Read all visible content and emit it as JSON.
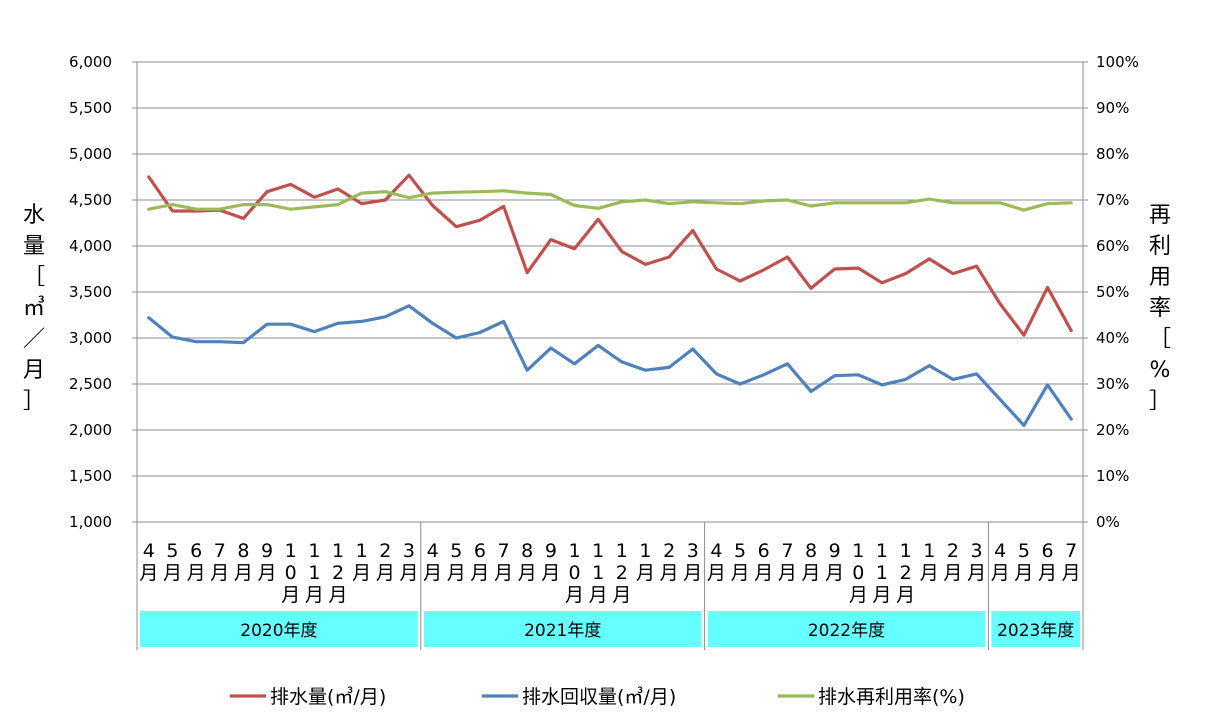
{
  "chart_data": {
    "type": "line",
    "y_left_label": "水量［㎥／月］",
    "y_right_label": "再利用率［%］",
    "ylim_left": [
      1000,
      6000
    ],
    "ylim_right": [
      0,
      100
    ],
    "y_left_ticks": [
      "1,000",
      "1,500",
      "2,000",
      "2,500",
      "3,000",
      "3,500",
      "4,000",
      "4,500",
      "5,000",
      "5,500",
      "6,000"
    ],
    "y_right_ticks": [
      "0%",
      "10%",
      "20%",
      "30%",
      "40%",
      "50%",
      "60%",
      "70%",
      "80%",
      "90%",
      "100%"
    ],
    "categories": [
      "4月",
      "5月",
      "6月",
      "7月",
      "8月",
      "9月",
      "10月",
      "11月",
      "12月",
      "1月",
      "2月",
      "3月",
      "4月",
      "5月",
      "6月",
      "7月",
      "8月",
      "9月",
      "10月",
      "11月",
      "12月",
      "1月",
      "2月",
      "3月",
      "4月",
      "5月",
      "6月",
      "7月",
      "8月",
      "9月",
      "10月",
      "11月",
      "12月",
      "1月",
      "2月",
      "3月",
      "4月",
      "5月",
      "6月",
      "7月"
    ],
    "groups": [
      {
        "label": "2020年度",
        "count": 12
      },
      {
        "label": "2021年度",
        "count": 12
      },
      {
        "label": "2022年度",
        "count": 12
      },
      {
        "label": "2023年度",
        "count": 4
      }
    ],
    "grid": true,
    "legend_position": "bottom",
    "series": [
      {
        "name": "排水量(㎥/月)",
        "axis": "left",
        "color": "#c0504d",
        "values": [
          4750,
          4380,
          4380,
          4390,
          4300,
          4590,
          4670,
          4530,
          4620,
          4460,
          4500,
          4770,
          4440,
          4210,
          4280,
          4430,
          3710,
          4070,
          3970,
          4290,
          3940,
          3800,
          3880,
          4170,
          3750,
          3620,
          3740,
          3880,
          3540,
          3750,
          3760,
          3600,
          3700,
          3860,
          3700,
          3780,
          3370,
          3030,
          3550,
          3080
        ]
      },
      {
        "name": "排水回収量(㎥/月)",
        "axis": "left",
        "color": "#4f81bd",
        "values": [
          3220,
          3010,
          2960,
          2960,
          2950,
          3150,
          3150,
          3070,
          3160,
          3180,
          3230,
          3350,
          3160,
          3000,
          3060,
          3180,
          2650,
          2890,
          2720,
          2920,
          2740,
          2650,
          2680,
          2880,
          2610,
          2500,
          2600,
          2720,
          2420,
          2590,
          2600,
          2490,
          2550,
          2700,
          2550,
          2610,
          2330,
          2050,
          2490,
          2120
        ]
      },
      {
        "name": "排水再利用率(%)",
        "axis": "right",
        "color": "#9bbb59",
        "values": [
          68,
          69,
          68,
          68,
          69,
          69,
          68,
          68.5,
          69,
          71.5,
          71.8,
          70.5,
          71.5,
          71.7,
          71.8,
          72,
          71.5,
          71.2,
          68.8,
          68.2,
          69.6,
          70,
          69.2,
          69.6,
          69.4,
          69.2,
          69.8,
          70,
          68.7,
          69.4,
          69.4,
          69.4,
          69.4,
          70.2,
          69.4,
          69.4,
          69.4,
          67.8,
          69.2,
          69.4
        ]
      }
    ]
  }
}
